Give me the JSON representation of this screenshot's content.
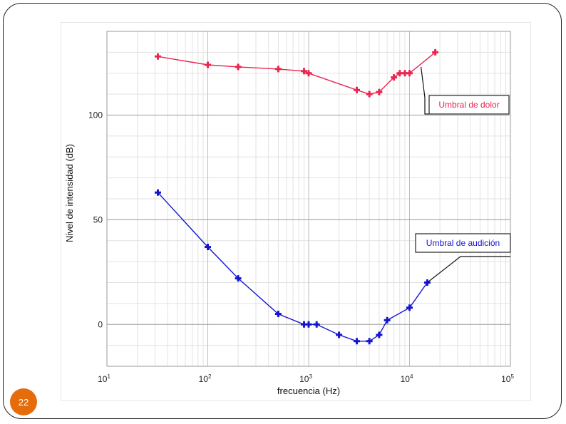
{
  "page_number": "22",
  "colors": {
    "pain": "#e8264f",
    "hearing": "#1414d2",
    "grid_major": "#bdbdbd",
    "grid_minor": "#e2e2e2",
    "page_badge": "#e46c0a"
  },
  "chart_data": {
    "type": "line",
    "xscale": "log",
    "xlim": [
      10,
      100000
    ],
    "ylim": [
      -20,
      140
    ],
    "xlabel": "frecuencia (Hz)",
    "ylabel": "Nivel de intensidad (dB)",
    "x_ticks": [
      {
        "value": 10,
        "base": "10",
        "exp": "1"
      },
      {
        "value": 100,
        "base": "10",
        "exp": "2"
      },
      {
        "value": 1000,
        "base": "10",
        "exp": "3"
      },
      {
        "value": 10000,
        "base": "10",
        "exp": "4"
      },
      {
        "value": 100000,
        "base": "10",
        "exp": "5"
      }
    ],
    "y_ticks": [
      {
        "value": 0,
        "label": "0"
      },
      {
        "value": 50,
        "label": "50"
      },
      {
        "value": 100,
        "label": "100"
      }
    ],
    "grid": true,
    "series": [
      {
        "name": "Umbral de dolor",
        "color": "#e8264f",
        "marker": "plus",
        "x": [
          32,
          100,
          200,
          500,
          900,
          1000,
          3000,
          4000,
          5000,
          7000,
          8000,
          9000,
          10000,
          18000
        ],
        "y": [
          128,
          124,
          123,
          122,
          121,
          120,
          112,
          110,
          111,
          118,
          120,
          120,
          120,
          130
        ]
      },
      {
        "name": "Umbral de audición",
        "color": "#1414d2",
        "marker": "plus",
        "x": [
          32,
          100,
          200,
          500,
          900,
          1000,
          1200,
          2000,
          3000,
          4000,
          5000,
          6000,
          10000,
          15000
        ],
        "y": [
          63,
          37,
          22,
          5,
          0,
          0,
          0,
          -5,
          -8,
          -8,
          -5,
          2,
          8,
          20
        ]
      }
    ],
    "annotations": [
      {
        "text": "Umbral de dolor",
        "series": 0,
        "anchor": {
          "x": 13000,
          "y": 123
        },
        "color": "#e8264f"
      },
      {
        "text": "Umbral de audición",
        "series": 1,
        "anchor": {
          "x": 15000,
          "y": 20
        },
        "color": "#1414d2"
      }
    ]
  }
}
